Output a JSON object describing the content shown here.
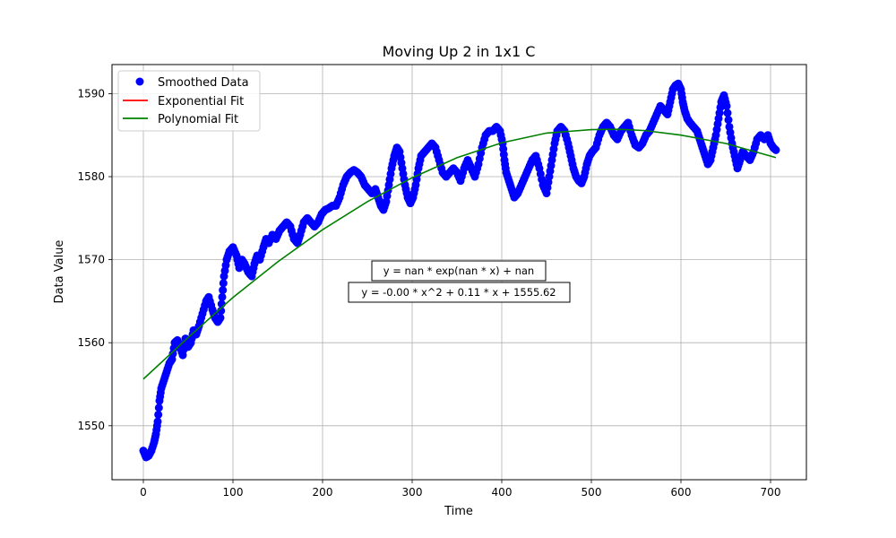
{
  "chart_data": {
    "type": "scatter",
    "title": "Moving Up 2 in 1x1 C",
    "xlabel": "Time",
    "ylabel": "Data Value",
    "xlim": [
      -35,
      740
    ],
    "ylim": [
      1543.5,
      1593.5
    ],
    "xticks": [
      0,
      100,
      200,
      300,
      400,
      500,
      600,
      700
    ],
    "yticks": [
      1550,
      1560,
      1570,
      1580,
      1590
    ],
    "grid": true,
    "legend_position": "top-left",
    "series": [
      {
        "name": "Smoothed Data",
        "kind": "markers",
        "color": "#0000ff",
        "points": [
          [
            0,
            1547
          ],
          [
            3,
            1546.2
          ],
          [
            6,
            1546.4
          ],
          [
            9,
            1547
          ],
          [
            12,
            1548
          ],
          [
            14,
            1549
          ],
          [
            16,
            1550.5
          ],
          [
            18,
            1553
          ],
          [
            20,
            1554.5
          ],
          [
            23,
            1555.5
          ],
          [
            26,
            1556.5
          ],
          [
            29,
            1557.5
          ],
          [
            32,
            1558
          ],
          [
            35,
            1560
          ],
          [
            38,
            1560.3
          ],
          [
            41,
            1559.5
          ],
          [
            44,
            1558.5
          ],
          [
            47,
            1560.5
          ],
          [
            50,
            1559.5
          ],
          [
            53,
            1560
          ],
          [
            56,
            1561.5
          ],
          [
            59,
            1561
          ],
          [
            62,
            1562
          ],
          [
            66,
            1563.5
          ],
          [
            70,
            1565
          ],
          [
            73,
            1565.5
          ],
          [
            77,
            1564
          ],
          [
            80,
            1563
          ],
          [
            83,
            1562.5
          ],
          [
            86,
            1563
          ],
          [
            88,
            1565.5
          ],
          [
            90,
            1568
          ],
          [
            93,
            1570
          ],
          [
            96,
            1571
          ],
          [
            100,
            1571.5
          ],
          [
            104,
            1570.5
          ],
          [
            107,
            1569
          ],
          [
            110,
            1570
          ],
          [
            113,
            1569.5
          ],
          [
            117,
            1568.5
          ],
          [
            121,
            1568
          ],
          [
            124,
            1569.5
          ],
          [
            127,
            1570.5
          ],
          [
            130,
            1570
          ],
          [
            134,
            1571.5
          ],
          [
            137,
            1572.5
          ],
          [
            140,
            1572
          ],
          [
            144,
            1573
          ],
          [
            148,
            1572.5
          ],
          [
            152,
            1573.5
          ],
          [
            156,
            1574
          ],
          [
            160,
            1574.5
          ],
          [
            164,
            1574
          ],
          [
            168,
            1572.5
          ],
          [
            172,
            1572
          ],
          [
            175,
            1573
          ],
          [
            179,
            1574.5
          ],
          [
            183,
            1575
          ],
          [
            187,
            1574.5
          ],
          [
            191,
            1574
          ],
          [
            195,
            1574.5
          ],
          [
            199,
            1575.5
          ],
          [
            203,
            1576
          ],
          [
            207,
            1576.2
          ],
          [
            211,
            1576.5
          ],
          [
            215,
            1576.5
          ],
          [
            219,
            1577.5
          ],
          [
            223,
            1579
          ],
          [
            227,
            1580
          ],
          [
            231,
            1580.5
          ],
          [
            235,
            1580.8
          ],
          [
            239,
            1580.5
          ],
          [
            243,
            1580
          ],
          [
            247,
            1579
          ],
          [
            251,
            1578.5
          ],
          [
            255,
            1578
          ],
          [
            259,
            1578.5
          ],
          [
            262,
            1577.5
          ],
          [
            265,
            1576.5
          ],
          [
            268,
            1576
          ],
          [
            271,
            1577
          ],
          [
            274,
            1579
          ],
          [
            277,
            1581
          ],
          [
            280,
            1582.5
          ],
          [
            283,
            1583.5
          ],
          [
            286,
            1583
          ],
          [
            289,
            1581
          ],
          [
            292,
            1579
          ],
          [
            295,
            1577.5
          ],
          [
            298,
            1576.8
          ],
          [
            301,
            1577.5
          ],
          [
            304,
            1579
          ],
          [
            307,
            1581
          ],
          [
            310,
            1582.5
          ],
          [
            314,
            1583
          ],
          [
            318,
            1583.5
          ],
          [
            322,
            1584
          ],
          [
            326,
            1583.5
          ],
          [
            330,
            1582
          ],
          [
            334,
            1580.5
          ],
          [
            338,
            1580
          ],
          [
            342,
            1580.5
          ],
          [
            346,
            1581
          ],
          [
            350,
            1580.5
          ],
          [
            354,
            1579.5
          ],
          [
            358,
            1581
          ],
          [
            362,
            1582
          ],
          [
            366,
            1581
          ],
          [
            370,
            1580
          ],
          [
            374,
            1581.5
          ],
          [
            378,
            1583.5
          ],
          [
            382,
            1585
          ],
          [
            386,
            1585.5
          ],
          [
            390,
            1585.5
          ],
          [
            394,
            1586
          ],
          [
            398,
            1585.5
          ],
          [
            401,
            1584
          ],
          [
            403,
            1582
          ],
          [
            405,
            1580.5
          ],
          [
            408,
            1579.5
          ],
          [
            411,
            1578.5
          ],
          [
            414,
            1577.5
          ],
          [
            418,
            1578
          ],
          [
            422,
            1579
          ],
          [
            426,
            1580
          ],
          [
            430,
            1581
          ],
          [
            434,
            1582
          ],
          [
            438,
            1582.5
          ],
          [
            442,
            1581
          ],
          [
            446,
            1579
          ],
          [
            450,
            1578
          ],
          [
            453,
            1580
          ],
          [
            456,
            1582
          ],
          [
            459,
            1584
          ],
          [
            462,
            1585.5
          ],
          [
            466,
            1586
          ],
          [
            470,
            1585.5
          ],
          [
            474,
            1584
          ],
          [
            477,
            1582.5
          ],
          [
            480,
            1581
          ],
          [
            483,
            1580
          ],
          [
            486,
            1579.5
          ],
          [
            489,
            1579.2
          ],
          [
            492,
            1580
          ],
          [
            495,
            1581.5
          ],
          [
            498,
            1582.5
          ],
          [
            501,
            1583
          ],
          [
            505,
            1583.5
          ],
          [
            509,
            1585
          ],
          [
            513,
            1586
          ],
          [
            517,
            1586.5
          ],
          [
            521,
            1586
          ],
          [
            525,
            1585
          ],
          [
            529,
            1584.5
          ],
          [
            533,
            1585.5
          ],
          [
            537,
            1586
          ],
          [
            541,
            1586.5
          ],
          [
            545,
            1585
          ],
          [
            549,
            1583.8
          ],
          [
            553,
            1583.5
          ],
          [
            557,
            1584
          ],
          [
            561,
            1585
          ],
          [
            565,
            1585.5
          ],
          [
            569,
            1586.5
          ],
          [
            573,
            1587.5
          ],
          [
            577,
            1588.5
          ],
          [
            581,
            1588
          ],
          [
            585,
            1587.5
          ],
          [
            588,
            1589
          ],
          [
            591,
            1590.5
          ],
          [
            594,
            1591
          ],
          [
            597,
            1591.2
          ],
          [
            600,
            1590.5
          ],
          [
            602,
            1589
          ],
          [
            604,
            1588
          ],
          [
            607,
            1587
          ],
          [
            610,
            1586.5
          ],
          [
            614,
            1586
          ],
          [
            618,
            1585.5
          ],
          [
            621,
            1584.5
          ],
          [
            624,
            1583.5
          ],
          [
            627,
            1582.5
          ],
          [
            630,
            1581.5
          ],
          [
            633,
            1582
          ],
          [
            636,
            1583.5
          ],
          [
            639,
            1585
          ],
          [
            642,
            1587
          ],
          [
            645,
            1589
          ],
          [
            648,
            1589.8
          ],
          [
            651,
            1588.5
          ],
          [
            654,
            1586
          ],
          [
            657,
            1584
          ],
          [
            660,
            1582.5
          ],
          [
            663,
            1581
          ],
          [
            666,
            1582
          ],
          [
            669,
            1583
          ],
          [
            673,
            1582.5
          ],
          [
            677,
            1582
          ],
          [
            681,
            1583
          ],
          [
            685,
            1584.5
          ],
          [
            689,
            1585
          ],
          [
            693,
            1584.5
          ],
          [
            697,
            1585
          ],
          [
            700,
            1584
          ],
          [
            703,
            1583.5
          ],
          [
            706,
            1583.2
          ]
        ]
      },
      {
        "name": "Exponential Fit",
        "kind": "line",
        "color": "#ff0000",
        "points": []
      },
      {
        "name": "Polynomial Fit",
        "kind": "line",
        "color": "#008000",
        "points": [
          [
            0,
            1555.62
          ],
          [
            50,
            1560.62
          ],
          [
            100,
            1565.45
          ],
          [
            150,
            1569.74
          ],
          [
            200,
            1573.61
          ],
          [
            250,
            1576.98
          ],
          [
            300,
            1579.87
          ],
          [
            350,
            1582.28
          ],
          [
            400,
            1584.08
          ],
          [
            450,
            1585.25
          ],
          [
            500,
            1585.66
          ],
          [
            530,
            1585.7
          ],
          [
            560,
            1585.55
          ],
          [
            600,
            1585.0
          ],
          [
            650,
            1584.0
          ],
          [
            706,
            1582.3
          ]
        ]
      }
    ],
    "annotations": [
      {
        "text": "y = nan * exp(nan * x) + nan"
      },
      {
        "text": "y = -0.00 * x^2 + 0.11 * x + 1555.62"
      }
    ]
  }
}
